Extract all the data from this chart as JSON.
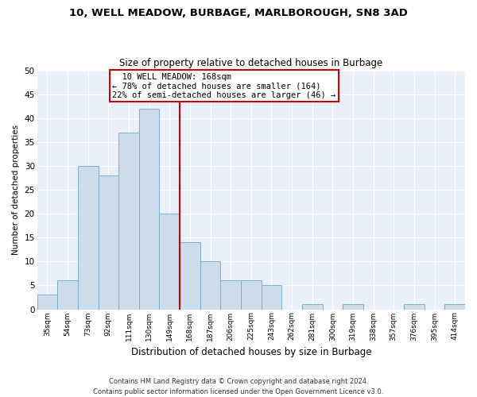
{
  "title": "10, WELL MEADOW, BURBAGE, MARLBOROUGH, SN8 3AD",
  "subtitle": "Size of property relative to detached houses in Burbage",
  "xlabel": "Distribution of detached houses by size in Burbage",
  "ylabel": "Number of detached properties",
  "bin_labels": [
    "35sqm",
    "54sqm",
    "73sqm",
    "92sqm",
    "111sqm",
    "130sqm",
    "149sqm",
    "168sqm",
    "187sqm",
    "206sqm",
    "225sqm",
    "243sqm",
    "262sqm",
    "281sqm",
    "300sqm",
    "319sqm",
    "338sqm",
    "357sqm",
    "376sqm",
    "395sqm",
    "414sqm"
  ],
  "bar_values": [
    3,
    6,
    30,
    28,
    37,
    42,
    20,
    14,
    10,
    6,
    6,
    5,
    0,
    1,
    0,
    1,
    0,
    0,
    1,
    0,
    1
  ],
  "bar_color": "#ccdded",
  "bar_edge_color": "#7aafc8",
  "highlight_index": 7,
  "highlight_line_color": "#cc0000",
  "annotation_title": "10 WELL MEADOW: 168sqm",
  "annotation_line1": "← 78% of detached houses are smaller (164)",
  "annotation_line2": "22% of semi-detached houses are larger (46) →",
  "annotation_box_edge": "#cc0000",
  "ylim": [
    0,
    50
  ],
  "yticks": [
    0,
    5,
    10,
    15,
    20,
    25,
    30,
    35,
    40,
    45,
    50
  ],
  "footer1": "Contains HM Land Registry data © Crown copyright and database right 2024.",
  "footer2": "Contains public sector information licensed under the Open Government Licence v3.0.",
  "bg_color": "#eaf0f8"
}
